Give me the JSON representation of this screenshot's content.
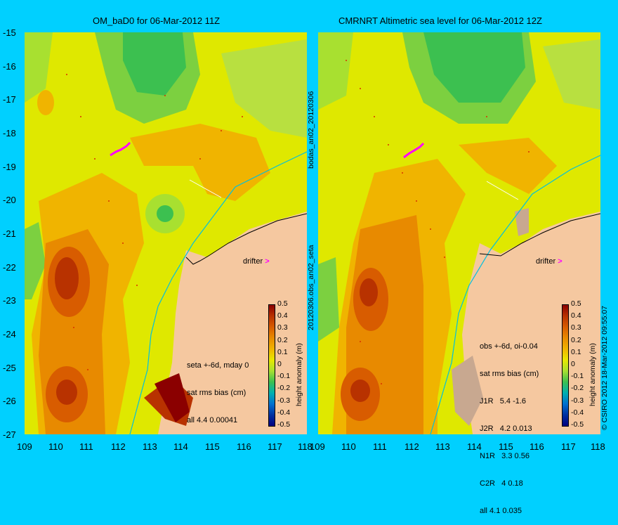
{
  "left_panel": {
    "title": "OM_baD0 for 06-Mar-2012 11Z",
    "annotation_lines": [
      "seta +-6d, mday 0",
      "sat rms bias (cm)",
      "all 4.4 0.00041"
    ],
    "drifter_label": "drifter"
  },
  "right_panel": {
    "title": "CMRNRT Altimetric sea level  for 06-Mar-2012 12Z",
    "annotation_lines": [
      "obs +-6d, oi-0.04",
      "sat rms bias (cm)",
      "J1R   5.4 -1.6",
      "J2R   4.2 0.013",
      "N1R   3.3 0.56",
      "C2R   4 0.18",
      "all 4.1 0.035"
    ],
    "drifter_label": "drifter"
  },
  "axes": {
    "x_ticks": [
      "109",
      "110",
      "111",
      "112",
      "113",
      "114",
      "115",
      "116",
      "117",
      "118"
    ],
    "y_ticks": [
      "-15",
      "-16",
      "-17",
      "-18",
      "-19",
      "-20",
      "-21",
      "-22",
      "-23",
      "-24",
      "-25",
      "-26",
      "-27"
    ]
  },
  "colorbar": {
    "label": "height anomaly (m)",
    "ticks": [
      "0.5",
      "0.4",
      "0.3",
      "0.2",
      "0.1",
      "0",
      "-0.1",
      "-0.2",
      "-0.3",
      "-0.4",
      "-0.5"
    ],
    "colors": [
      "#8b0000",
      "#b83200",
      "#d85c00",
      "#e88a00",
      "#f0b400",
      "#e8e800",
      "#a8e030",
      "#3cc050",
      "#00b0b0",
      "#0070d0",
      "#0030a0",
      "#000080"
    ]
  },
  "side_labels": {
    "middle_top": "bodas_an02_20120306",
    "middle_bottom": "20120306.obs_an02_seta",
    "right_credit": "© CSIRO 2012  18-Mar-2012 09:55:07"
  },
  "chart_data": {
    "type": "heatmap",
    "x_range": [
      109,
      118
    ],
    "y_range": [
      -27,
      -15
    ],
    "xlabel": "",
    "ylabel": "",
    "colorbar_range": [
      -0.5,
      0.5
    ],
    "colorbar_label": "height anomaly (m)"
  }
}
